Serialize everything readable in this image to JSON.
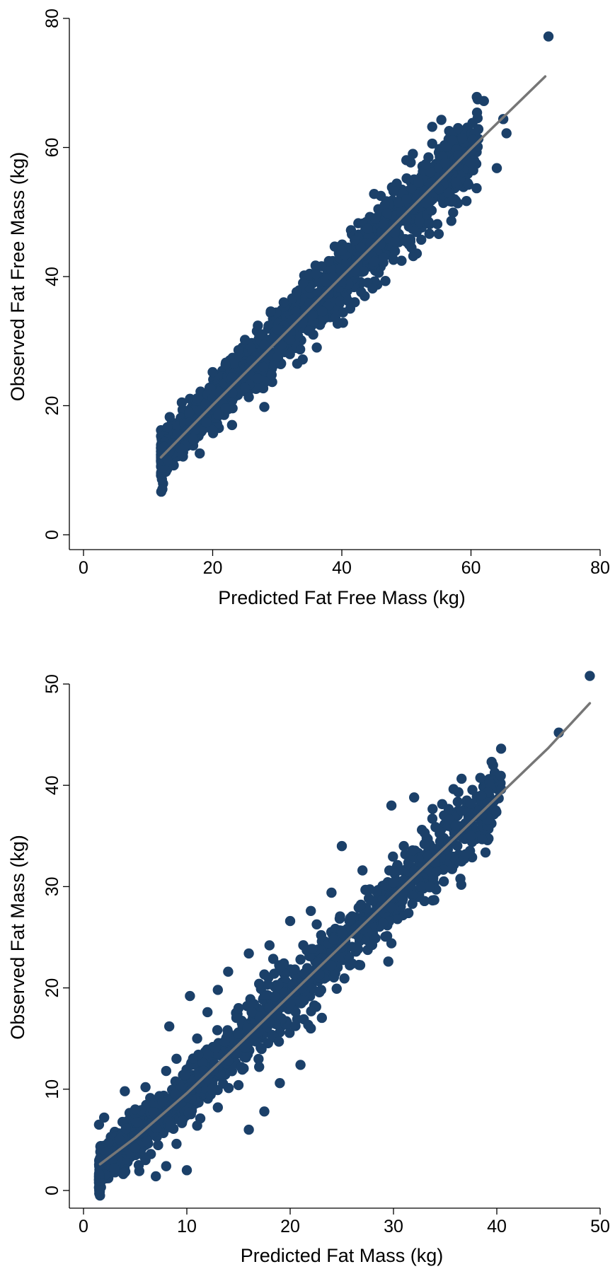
{
  "chart_data": [
    {
      "type": "scatter",
      "title": "",
      "xlabel": "Predicted Fat Free Mass (kg)",
      "ylabel": "Observed Fat Free Mass (kg)",
      "xlim": [
        0,
        80
      ],
      "ylim": [
        0,
        80
      ],
      "xticks": [
        0,
        20,
        40,
        60,
        80
      ],
      "yticks": [
        0,
        20,
        40,
        60,
        80
      ],
      "grid": false,
      "marker_color": "#1b4069",
      "line_color": "#767676",
      "series": [
        {
          "kind": "points",
          "points": [
            [
              12,
              12.4
            ],
            [
              12.5,
              13.6
            ],
            [
              13,
              11.6
            ],
            [
              13.8,
              14.2
            ],
            [
              14.5,
              15.6
            ],
            [
              15,
              13.4
            ],
            [
              16,
              16.2
            ],
            [
              17,
              14.8
            ],
            [
              18,
              12.6
            ],
            [
              18,
              19.2
            ],
            [
              19,
              17.4
            ],
            [
              20,
              21.2
            ],
            [
              20,
              25.2
            ],
            [
              21,
              22.0
            ],
            [
              22,
              19.6
            ],
            [
              22,
              26.4
            ],
            [
              23,
              17.0
            ],
            [
              23,
              24.4
            ],
            [
              24,
              28.6
            ],
            [
              25,
              22.8
            ],
            [
              25,
              30.2
            ],
            [
              26,
              27.0
            ],
            [
              27,
              24.2
            ],
            [
              27,
              32.4
            ],
            [
              28,
              19.8
            ],
            [
              28,
              29.4
            ],
            [
              29,
              34.6
            ],
            [
              30,
              27.6
            ],
            [
              30,
              31.8
            ],
            [
              31,
              36.0
            ],
            [
              32,
              30.2
            ],
            [
              33,
              37.6
            ],
            [
              33,
              33.6
            ],
            [
              34,
              39.0
            ],
            [
              35,
              31.6
            ],
            [
              35,
              35.8
            ],
            [
              36,
              40.4
            ],
            [
              37,
              34.6
            ],
            [
              38,
              42.4
            ],
            [
              38,
              37.4
            ],
            [
              39,
              33.6
            ],
            [
              40,
              44.0
            ],
            [
              40,
              39.2
            ],
            [
              41,
              36.2
            ],
            [
              42,
              45.6
            ],
            [
              42,
              40.8
            ],
            [
              43,
              37.6
            ],
            [
              44,
              47.4
            ],
            [
              45,
              42.4
            ],
            [
              45,
              52.8
            ],
            [
              46,
              45.0
            ],
            [
              47,
              49.8
            ],
            [
              48,
              42.6
            ],
            [
              48,
              53.2
            ],
            [
              50,
              52.0
            ],
            [
              50,
              45.4
            ],
            [
              51,
              59.0
            ],
            [
              52,
              48.6
            ],
            [
              53,
              51.4
            ],
            [
              53,
              57.4
            ],
            [
              54,
              60.6
            ],
            [
              54,
              63.2
            ],
            [
              55,
              46.6
            ],
            [
              55,
              53.6
            ],
            [
              56,
              57.6
            ],
            [
              57,
              51.6
            ],
            [
              58,
              58.8
            ],
            [
              58,
              63.0
            ],
            [
              60,
              57.6
            ],
            [
              62,
              67.2
            ],
            [
              64,
              56.8
            ],
            [
              65,
              64.4
            ],
            [
              65.5,
              62.2
            ],
            [
              72,
              77.2
            ]
          ]
        },
        {
          "kind": "line",
          "points": [
            [
              12,
              12
            ],
            [
              20,
              20.1
            ],
            [
              30,
              30.0
            ],
            [
              40,
              40.0
            ],
            [
              50,
              49.9
            ],
            [
              60,
              59.8
            ],
            [
              71.5,
              71.0
            ]
          ]
        }
      ]
    },
    {
      "type": "scatter",
      "title": "",
      "xlabel": "Predicted Fat Mass (kg)",
      "ylabel": "Observed Fat Mass (kg)",
      "xlim": [
        0,
        50
      ],
      "ylim": [
        0,
        50
      ],
      "xticks": [
        0,
        10,
        20,
        30,
        40,
        50
      ],
      "yticks": [
        0,
        10,
        20,
        30,
        40,
        50
      ],
      "grid": false,
      "marker_color": "#1b4069",
      "line_color": "#767676",
      "series": [
        {
          "kind": "points",
          "points": [
            [
              1.5,
              6.5
            ],
            [
              2,
              7.2
            ],
            [
              2,
              3.0
            ],
            [
              3,
              2.2
            ],
            [
              3.5,
              5.0
            ],
            [
              4,
              9.8
            ],
            [
              4,
              1.8
            ],
            [
              5,
              4.2
            ],
            [
              5,
              8.0
            ],
            [
              6,
              3.0
            ],
            [
              6,
              10.2
            ],
            [
              7,
              1.4
            ],
            [
              7,
              6.2
            ],
            [
              8,
              2.4
            ],
            [
              8,
              11.8
            ],
            [
              8.3,
              16.2
            ],
            [
              9,
              4.6
            ],
            [
              9,
              13.0
            ],
            [
              10,
              2.0
            ],
            [
              10,
              9.2
            ],
            [
              10.3,
              19.2
            ],
            [
              11,
              6.4
            ],
            [
              11,
              15.0
            ],
            [
              12,
              11.0
            ],
            [
              12,
              17.6
            ],
            [
              13,
              8.2
            ],
            [
              13,
              19.8
            ],
            [
              14,
              12.8
            ],
            [
              14,
              21.6
            ],
            [
              15,
              10.4
            ],
            [
              15,
              18.0
            ],
            [
              16,
              6.0
            ],
            [
              16,
              14.6
            ],
            [
              16,
              23.4
            ],
            [
              17,
              12.2
            ],
            [
              17,
              20.4
            ],
            [
              17.5,
              7.8
            ],
            [
              18,
              16.6
            ],
            [
              18,
              24.2
            ],
            [
              19,
              10.6
            ],
            [
              19,
              22.0
            ],
            [
              20,
              18.4
            ],
            [
              20,
              26.6
            ],
            [
              21,
              12.4
            ],
            [
              21,
              22.8
            ],
            [
              22,
              16.0
            ],
            [
              22,
              27.6
            ],
            [
              23,
              19.8
            ],
            [
              23,
              25.2
            ],
            [
              24,
              29.4
            ],
            [
              24,
              22.2
            ],
            [
              25,
              24.0
            ],
            [
              25,
              34.0
            ],
            [
              26,
              27.0
            ],
            [
              26,
              22.4
            ],
            [
              27,
              31.6
            ],
            [
              28,
              28.6
            ],
            [
              29,
              26.4
            ],
            [
              29.5,
              22.6
            ],
            [
              29.8,
              24.4
            ],
            [
              29.8,
              38.0
            ],
            [
              30,
              30.4
            ],
            [
              31,
              34.0
            ],
            [
              32,
              38.8
            ],
            [
              32,
              31.6
            ],
            [
              33,
              34.2
            ],
            [
              33.5,
              30.0
            ],
            [
              34,
              32.4
            ],
            [
              36,
              36.0
            ],
            [
              37,
              33.2
            ],
            [
              37.5,
              35.0
            ],
            [
              37.5,
              38.2
            ],
            [
              38.5,
              39.0
            ],
            [
              46,
              45.2
            ],
            [
              49,
              50.8
            ]
          ]
        },
        {
          "kind": "line",
          "points": [
            [
              1.6,
              2.6
            ],
            [
              5,
              5.2
            ],
            [
              10,
              9.6
            ],
            [
              15,
              14.4
            ],
            [
              20,
              19.3
            ],
            [
              25,
              24.2
            ],
            [
              30,
              29.1
            ],
            [
              35,
              33.9
            ],
            [
              40,
              38.8
            ],
            [
              45,
              43.7
            ],
            [
              49,
              48.1
            ]
          ]
        }
      ]
    }
  ]
}
